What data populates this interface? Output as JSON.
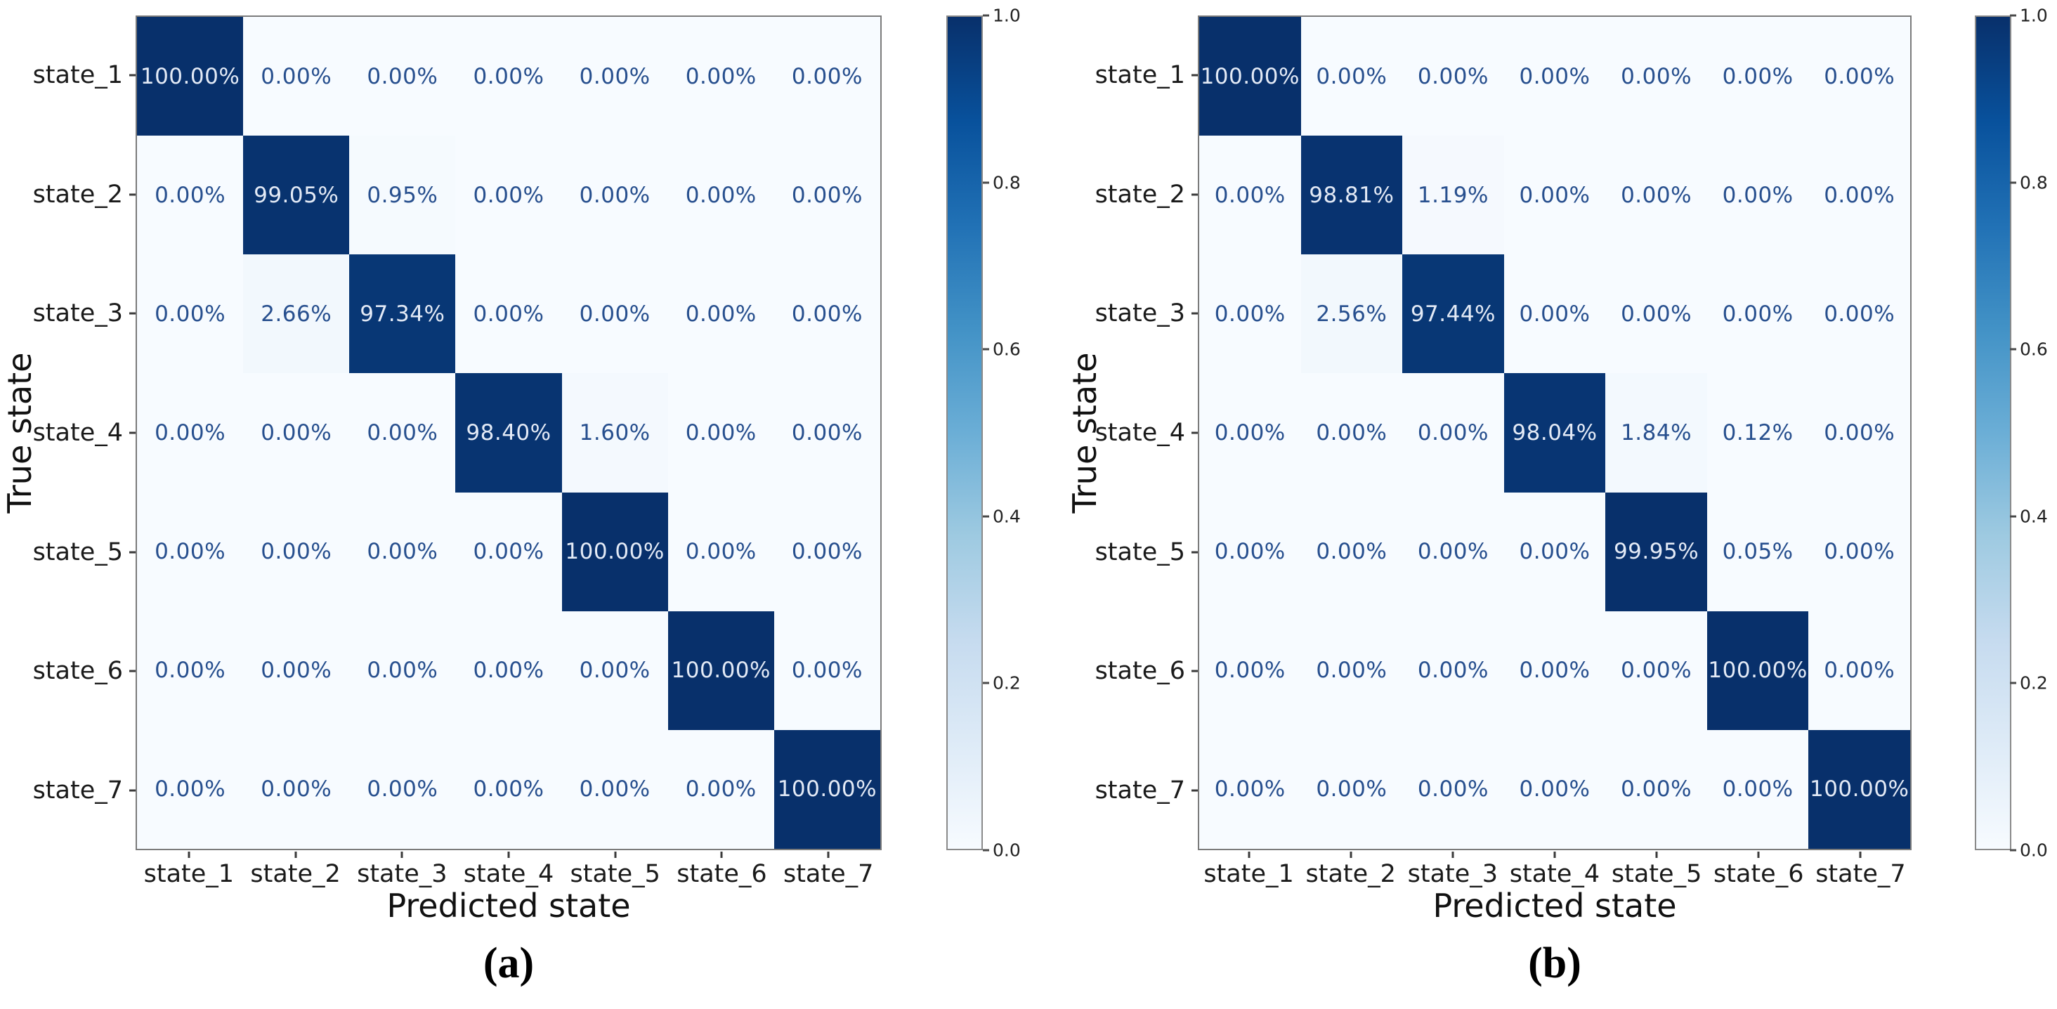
{
  "colors": {
    "cmap_stops_light_to_dark": [
      "#f7fbff",
      "#deebf7",
      "#c6dbef",
      "#9ecae1",
      "#6baed6",
      "#4292c6",
      "#2171b5",
      "#08519c",
      "#08306b"
    ],
    "annotation_on_light": "#274f8e",
    "annotation_on_dark": "#e3eaf6",
    "tick_label": "#1a1a1a",
    "spine": "#7b7b7b"
  },
  "chart_data": [
    {
      "type": "heatmap",
      "panel": "a",
      "caption": "(a)",
      "xlabel": "Predicted state",
      "ylabel": "True state",
      "x_tick_labels": [
        "state_1",
        "state_2",
        "state_3",
        "state_4",
        "state_5",
        "state_6",
        "state_7"
      ],
      "y_tick_labels": [
        "state_1",
        "state_2",
        "state_3",
        "state_4",
        "state_5",
        "state_6",
        "state_7"
      ],
      "values_percent": [
        [
          100.0,
          0.0,
          0.0,
          0.0,
          0.0,
          0.0,
          0.0
        ],
        [
          0.0,
          99.05,
          0.95,
          0.0,
          0.0,
          0.0,
          0.0
        ],
        [
          0.0,
          2.66,
          97.34,
          0.0,
          0.0,
          0.0,
          0.0
        ],
        [
          0.0,
          0.0,
          0.0,
          98.4,
          1.6,
          0.0,
          0.0
        ],
        [
          0.0,
          0.0,
          0.0,
          0.0,
          100.0,
          0.0,
          0.0
        ],
        [
          0.0,
          0.0,
          0.0,
          0.0,
          0.0,
          100.0,
          0.0
        ],
        [
          0.0,
          0.0,
          0.0,
          0.0,
          0.0,
          0.0,
          100.0
        ]
      ],
      "value_format": "percent_2dp",
      "colorbar_ticks": [
        "1.0",
        "0.8",
        "0.6",
        "0.4",
        "0.2",
        "0.0"
      ],
      "colorbar_range": [
        0,
        1
      ],
      "colormap": "Blues",
      "legend_position": "right-colorbar",
      "grid": "off"
    },
    {
      "type": "heatmap",
      "panel": "b",
      "caption": "(b)",
      "xlabel": "Predicted state",
      "ylabel": "True state",
      "x_tick_labels": [
        "state_1",
        "state_2",
        "state_3",
        "state_4",
        "state_5",
        "state_6",
        "state_7"
      ],
      "y_tick_labels": [
        "state_1",
        "state_2",
        "state_3",
        "state_4",
        "state_5",
        "state_6",
        "state_7"
      ],
      "values_percent": [
        [
          100.0,
          0.0,
          0.0,
          0.0,
          0.0,
          0.0,
          0.0
        ],
        [
          0.0,
          98.81,
          1.19,
          0.0,
          0.0,
          0.0,
          0.0
        ],
        [
          0.0,
          2.56,
          97.44,
          0.0,
          0.0,
          0.0,
          0.0
        ],
        [
          0.0,
          0.0,
          0.0,
          98.04,
          1.84,
          0.12,
          0.0
        ],
        [
          0.0,
          0.0,
          0.0,
          0.0,
          99.95,
          0.05,
          0.0
        ],
        [
          0.0,
          0.0,
          0.0,
          0.0,
          0.0,
          100.0,
          0.0
        ],
        [
          0.0,
          0.0,
          0.0,
          0.0,
          0.0,
          0.0,
          100.0
        ]
      ],
      "value_format": "percent_2dp",
      "colorbar_ticks": [
        "1.0",
        "0.8",
        "0.6",
        "0.4",
        "0.2",
        "0.0"
      ],
      "colorbar_range": [
        0,
        1
      ],
      "colormap": "Blues",
      "legend_position": "right-colorbar",
      "grid": "off"
    }
  ]
}
